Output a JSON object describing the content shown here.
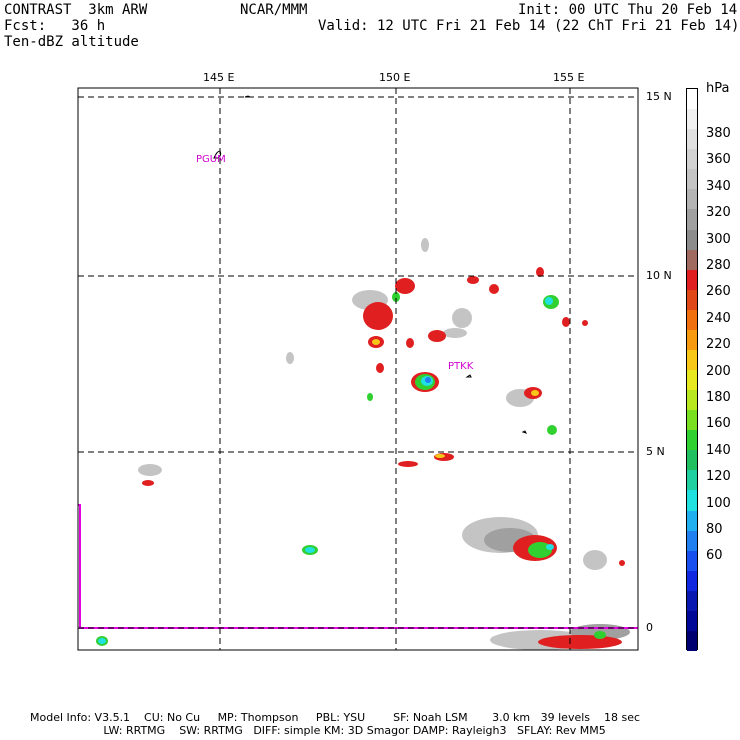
{
  "header": {
    "line1_left": "CONTRAST  3km ARW",
    "line1_center": "NCAR/MMM",
    "line1_right": "Init: 00 UTC Thu 20 Feb 14",
    "line2_left": "Fcst:   36 h",
    "line2_right": "Valid: 12 UTC Fri 21 Feb 14 (22 ChT Fri 21 Feb 14)",
    "line3_left": "Ten-dBZ altitude"
  },
  "map": {
    "lon_labels": [
      "145 E",
      "150 E",
      "155 E"
    ],
    "lat_labels": [
      "15 N",
      "10 N",
      "5 N",
      "0"
    ],
    "station_labels": [
      "PGUM",
      "PTKK"
    ],
    "colors": {
      "grid": "#000000",
      "domain_line": "#e000e0",
      "station": "#d000d0"
    }
  },
  "colorbar": {
    "unit": "hPa",
    "labels": [
      "380",
      "360",
      "340",
      "320",
      "300",
      "280",
      "260",
      "240",
      "220",
      "200",
      "180",
      "160",
      "140",
      "120",
      "100",
      "80",
      "60"
    ],
    "colors": [
      "#ffffff",
      "#f0f0f0",
      "#e0e0e0",
      "#d2d2d2",
      "#c4c4c4",
      "#b4b4b4",
      "#a0a0a0",
      "#8c8c8c",
      "#a06a60",
      "#e02020",
      "#e04818",
      "#f07010",
      "#f89a10",
      "#f8c818",
      "#e8e820",
      "#b8e820",
      "#78e020",
      "#30d030",
      "#20c060",
      "#20d0a0",
      "#20e0e0",
      "#20b0f0",
      "#2080f0",
      "#1850f0",
      "#1028e0",
      "#0818b0",
      "#000898",
      "#000070"
    ]
  },
  "footer": {
    "line1": "Model Info: V3.5.1    CU: No Cu     MP: Thompson     PBL: YSU        SF: Noah LSM       3.0 km   39 levels    18 sec",
    "line2": "                     LW: RRTMG    SW: RRTMG   DIFF: simple KM: 3D Smagor DAMP: Rayleigh3   SFLAY: Rev MM5"
  }
}
